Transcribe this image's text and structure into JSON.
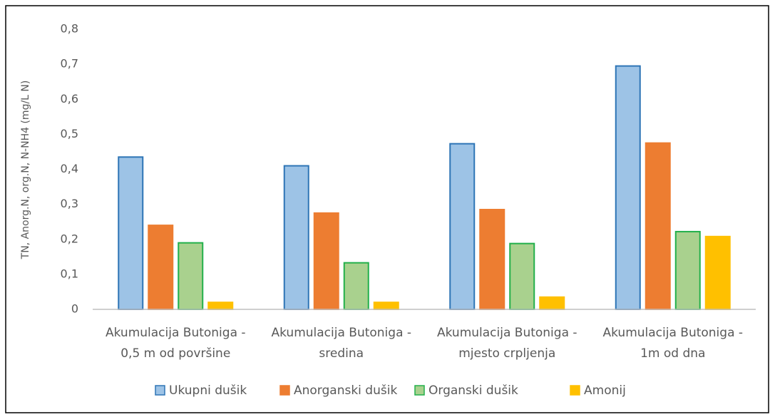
{
  "chart_data": {
    "type": "bar",
    "ylabel": "TN, Anorg.N, org.N, N-NH4 (mg/L N)",
    "categories": [
      [
        "Akumulacija Butoniga -",
        "0,5 m od površine"
      ],
      [
        "Akumulacija Butoniga -",
        "sredina"
      ],
      [
        "Akumulacija Butoniga -",
        "mjesto crpljenja"
      ],
      [
        "Akumulacija Butoniga -",
        "1m od dna"
      ]
    ],
    "series": [
      {
        "name": "Ukupni dušik",
        "color": "#9dc3e6",
        "edgecolor": "#2e75b6",
        "values": [
          0.435,
          0.41,
          0.473,
          0.695
        ]
      },
      {
        "name": "Anorganski dušik",
        "color": "#ed7d31",
        "edgecolor": "#ed7d31",
        "values": [
          0.24,
          0.275,
          0.285,
          0.475
        ]
      },
      {
        "name": "Organski dušik",
        "color": "#a9d18e",
        "edgecolor": "#22b04b",
        "values": [
          0.19,
          0.133,
          0.188,
          0.222
        ]
      },
      {
        "name": "Amonij",
        "color": "#ffc000",
        "edgecolor": "#ffc000",
        "values": [
          0.02,
          0.02,
          0.035,
          0.208
        ]
      }
    ],
    "ylim": [
      0,
      0.8
    ],
    "yticks": [
      0,
      {
        "value": 0.1,
        "label": "0,1"
      },
      {
        "value": 0.2,
        "label": "0,2"
      },
      {
        "value": 0.3,
        "label": "0,3"
      },
      {
        "value": 0.4,
        "label": "0,4"
      },
      {
        "value": 0.5,
        "label": "0,5"
      },
      {
        "value": 0.6,
        "label": "0,6"
      },
      {
        "value": 0.7,
        "label": "0,7"
      },
      {
        "value": 0.8,
        "label": "0,8"
      }
    ],
    "grid": false,
    "legend": "bottom"
  }
}
